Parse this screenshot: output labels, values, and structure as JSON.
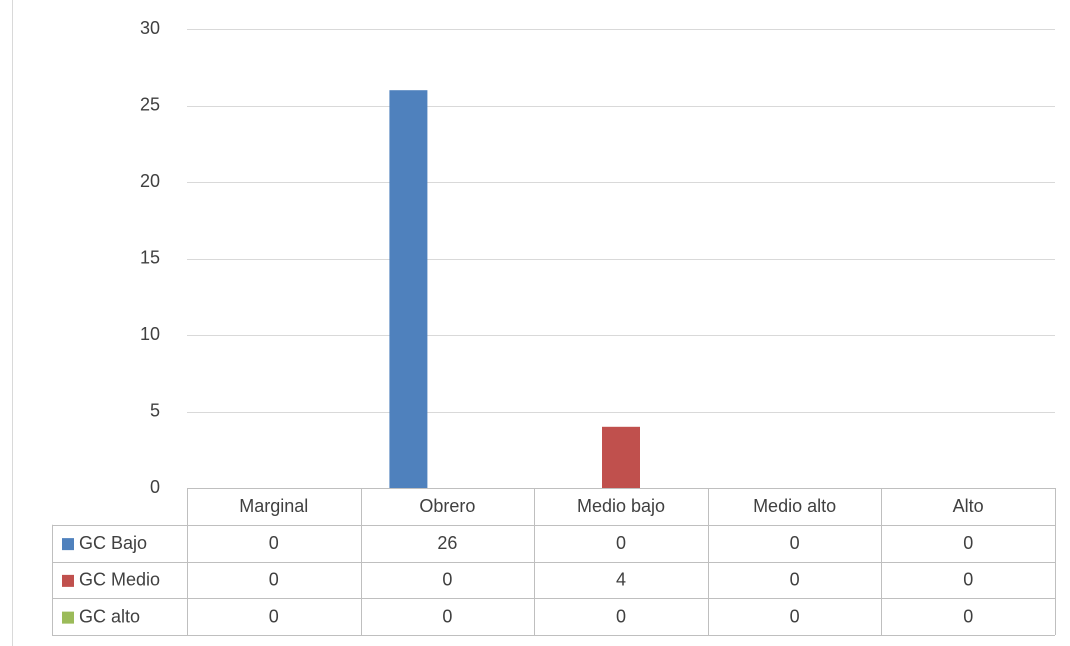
{
  "chart_data": {
    "type": "bar",
    "categories": [
      "Marginal",
      "Obrero",
      "Medio bajo",
      "Medio alto",
      "Alto"
    ],
    "series": [
      {
        "name": "GC Bajo",
        "color": "#4f81bd",
        "values": [
          0,
          26,
          0,
          0,
          0
        ]
      },
      {
        "name": "GC Medio",
        "color": "#c0504d",
        "values": [
          0,
          0,
          4,
          0,
          0
        ]
      },
      {
        "name": "GC alto",
        "color": "#9bbb59",
        "values": [
          0,
          0,
          0,
          0,
          0
        ]
      }
    ],
    "ylim": [
      0,
      30
    ],
    "yticks": [
      0,
      5,
      10,
      15,
      20,
      25,
      30
    ],
    "grid": true,
    "data_table": true
  }
}
